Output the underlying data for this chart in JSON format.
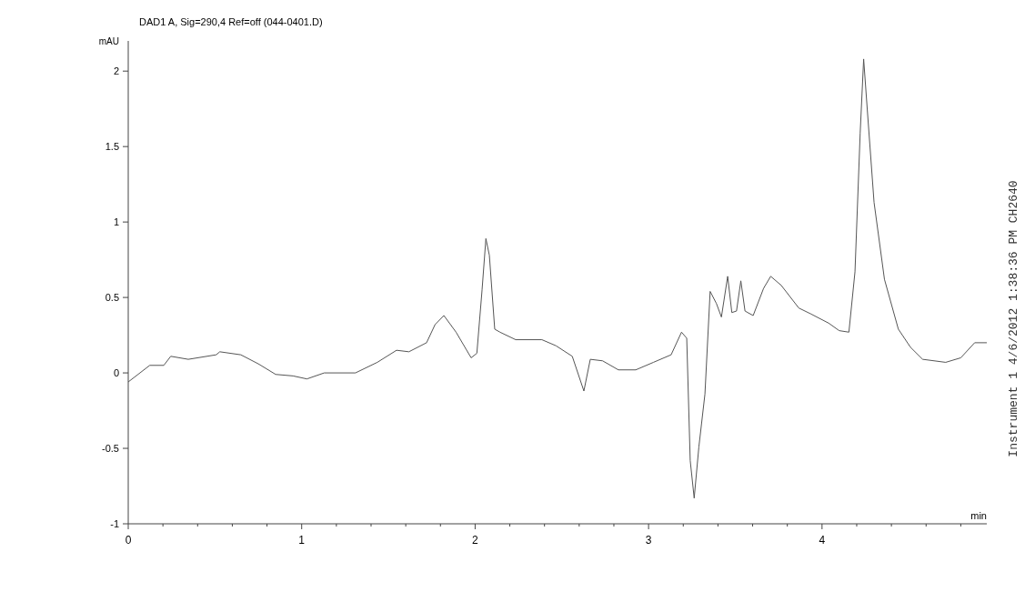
{
  "chart_data": {
    "type": "line",
    "title": "DAD1 A, Sig=290,4 Ref=off (044-0401.D)",
    "xlabel": "min",
    "ylabel": "mAU",
    "annotations": [
      "Instrument 1 4/6/2012 1:38:36 PM CH2640"
    ],
    "xlim": [
      0,
      4.95
    ],
    "ylim": [
      -1,
      2.2
    ],
    "xticks": [
      0,
      {
        "value": 0.2,
        "label": null
      },
      {
        "value": 0.4,
        "label": null
      },
      {
        "value": 0.6,
        "label": null
      },
      {
        "value": 0.8,
        "label": null
      },
      1,
      {
        "value": 1.2,
        "label": null
      },
      {
        "value": 1.4,
        "label": null
      },
      {
        "value": 1.6,
        "label": null
      },
      {
        "value": 1.8,
        "label": null
      },
      2,
      {
        "value": 2.2,
        "label": null
      },
      {
        "value": 2.4,
        "label": null
      },
      {
        "value": 2.6,
        "label": null
      },
      {
        "value": 2.8,
        "label": null
      },
      3,
      {
        "value": 3.2,
        "label": null
      },
      {
        "value": 3.4,
        "label": null
      },
      {
        "value": 3.6,
        "label": null
      },
      {
        "value": 3.8,
        "label": null
      },
      4,
      {
        "value": 4.2,
        "label": null
      },
      {
        "value": 4.4,
        "label": null
      },
      {
        "value": 4.6,
        "label": null
      },
      {
        "value": 4.8,
        "label": null
      }
    ],
    "yticks": [
      -1,
      -0.5,
      0,
      0.5,
      1,
      1.5,
      2
    ],
    "series": [
      {
        "color": "#555555",
        "x": [
          0,
          0.124,
          0.205,
          0.245,
          0.346,
          0.507,
          0.528,
          0.649,
          0.75,
          0.85,
          0.95,
          1.03,
          1.13,
          1.31,
          1.436,
          1.547,
          1.618,
          1.72,
          1.769,
          1.82,
          1.89,
          1.977,
          2.01,
          2.04,
          2.062,
          2.082,
          2.113,
          2.143,
          2.234,
          2.385,
          2.466,
          2.56,
          2.627,
          2.664,
          2.735,
          2.826,
          2.926,
          3.028,
          3.13,
          3.19,
          3.22,
          3.24,
          3.263,
          3.29,
          3.325,
          3.355,
          3.391,
          3.42,
          3.456,
          3.48,
          3.507,
          3.532,
          3.556,
          3.603,
          3.663,
          3.704,
          3.765,
          3.866,
          3.937,
          4.038,
          4.099,
          4.155,
          4.19,
          4.22,
          4.24,
          4.26,
          4.3,
          4.36,
          4.44,
          4.51,
          4.58,
          4.713,
          4.8,
          4.88,
          4.95
        ],
        "values": [
          -0.06,
          0.05,
          0.05,
          0.11,
          0.09,
          0.12,
          0.14,
          0.12,
          0.06,
          -0.01,
          -0.02,
          -0.04,
          0,
          0,
          0.07,
          0.15,
          0.14,
          0.2,
          0.32,
          0.38,
          0.27,
          0.1,
          0.13,
          0.55,
          0.89,
          0.78,
          0.29,
          0.27,
          0.22,
          0.22,
          0.18,
          0.11,
          -0.12,
          0.09,
          0.08,
          0.02,
          0.02,
          0.07,
          0.12,
          0.27,
          0.23,
          -0.58,
          -0.83,
          -0.49,
          -0.14,
          0.54,
          0.46,
          0.37,
          0.64,
          0.4,
          0.41,
          0.61,
          0.41,
          0.38,
          0.56,
          0.64,
          0.58,
          0.43,
          0.39,
          0.33,
          0.28,
          0.27,
          0.67,
          1.59,
          2.08,
          1.76,
          1.13,
          0.62,
          0.29,
          0.17,
          0.09,
          0.07,
          0.1,
          0.2,
          0.2
        ]
      }
    ]
  }
}
